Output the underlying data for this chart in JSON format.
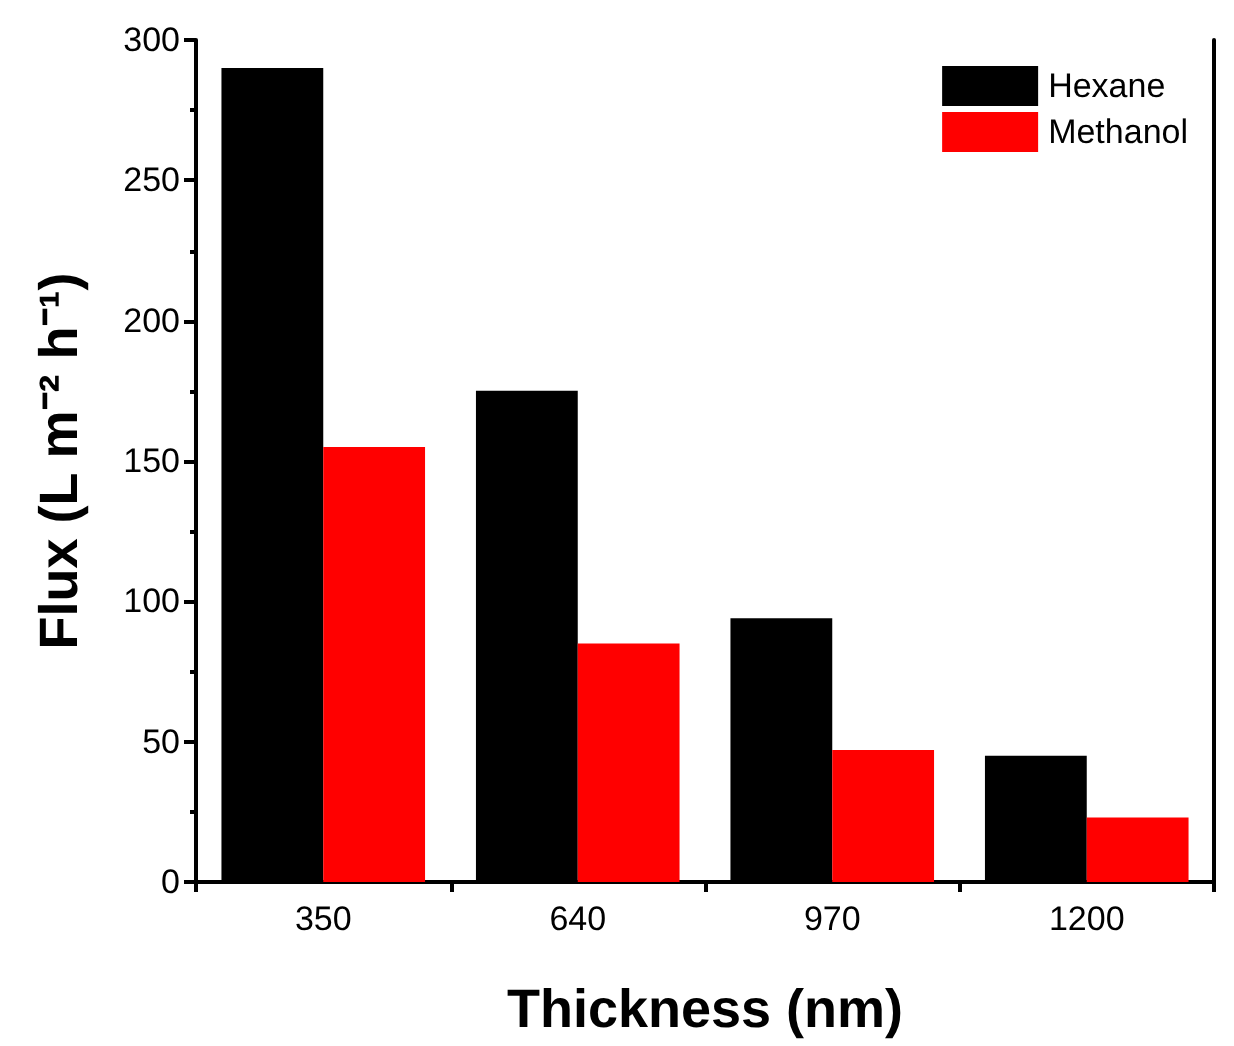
{
  "chart_data": {
    "type": "bar",
    "xlabel": "Thickness (nm)",
    "ylabel": "Flux (L m⁻² h⁻¹)",
    "categories": [
      "350",
      "640",
      "970",
      "1200"
    ],
    "series": [
      {
        "name": "Hexane",
        "color": "#000000",
        "values": [
          290,
          175,
          94,
          45
        ]
      },
      {
        "name": "Methanol",
        "color": "#ff0000",
        "values": [
          155,
          85,
          47,
          23
        ]
      }
    ],
    "ylim": [
      0,
      300
    ],
    "yticks": [
      0,
      50,
      100,
      150,
      200,
      250,
      300
    ],
    "grid": false,
    "legend": "top right"
  }
}
